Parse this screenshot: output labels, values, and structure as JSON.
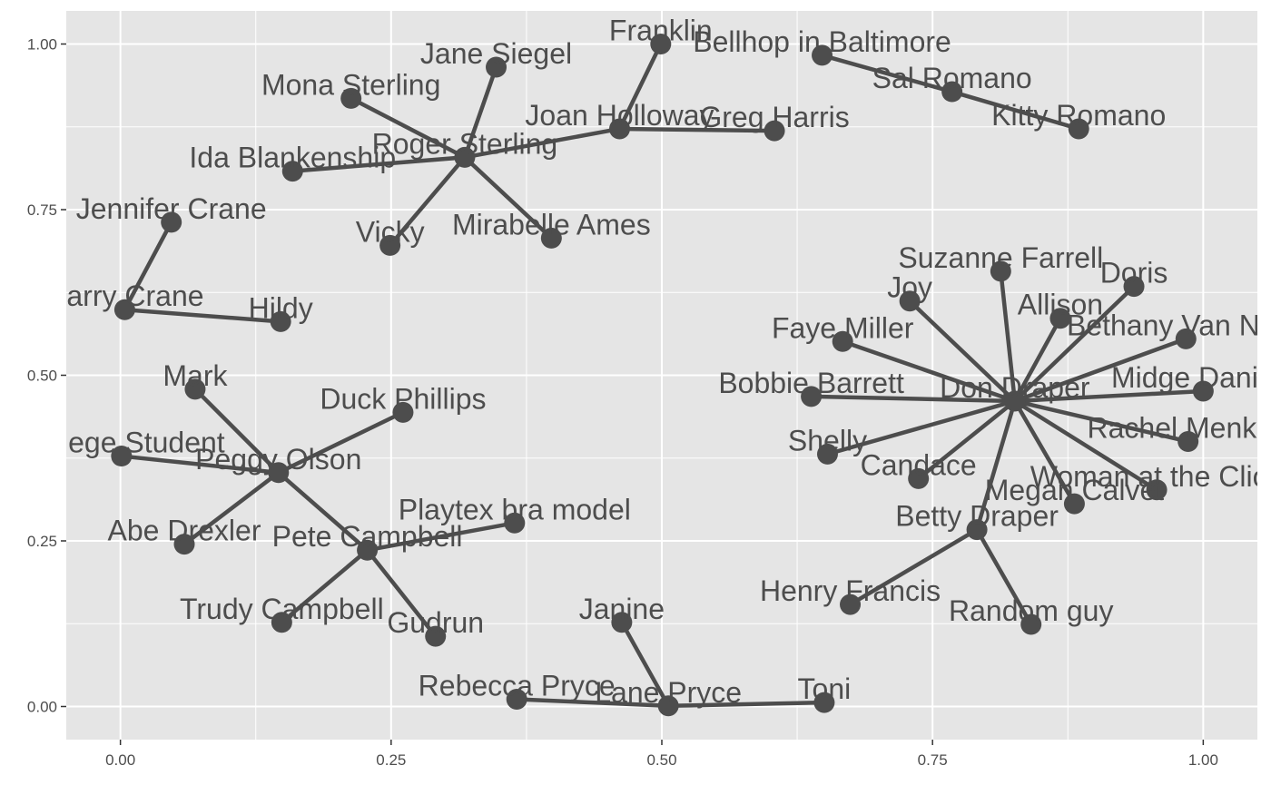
{
  "chart_data": {
    "type": "scatter",
    "subtype": "network",
    "title": "",
    "xlabel": "",
    "ylabel": "",
    "xlim": [
      -0.05,
      1.05
    ],
    "ylim": [
      -0.05,
      1.05
    ],
    "x_ticks": [
      0.0,
      0.25,
      0.5,
      0.75,
      1.0
    ],
    "y_ticks": [
      0.0,
      0.25,
      0.5,
      0.75,
      1.0
    ],
    "x_tick_labels": [
      "0.00",
      "0.25",
      "0.50",
      "0.75",
      "1.00"
    ],
    "y_tick_labels": [
      "0.00",
      "0.25",
      "0.50",
      "0.75",
      "1.00"
    ],
    "grid": true,
    "colors": {
      "panel": "#e5e5e5",
      "grid": "#ffffff",
      "mark": "#4d4d4d"
    },
    "nodes": [
      {
        "name": "Franklin",
        "x": 0.499,
        "y": 1.0
      },
      {
        "name": "Bellhop in Baltimore",
        "x": 0.648,
        "y": 0.983
      },
      {
        "name": "Jane Siegel",
        "x": 0.347,
        "y": 0.965
      },
      {
        "name": "Sal Romano",
        "x": 0.768,
        "y": 0.928
      },
      {
        "name": "Mona Sterling",
        "x": 0.213,
        "y": 0.918
      },
      {
        "name": "Joan Holloway",
        "x": 0.461,
        "y": 0.872
      },
      {
        "name": "Greg Harris",
        "x": 0.604,
        "y": 0.869
      },
      {
        "name": "Kitty Romano",
        "x": 0.885,
        "y": 0.872
      },
      {
        "name": "Roger Sterling",
        "x": 0.318,
        "y": 0.829
      },
      {
        "name": "Ida Blankenship",
        "x": 0.159,
        "y": 0.808
      },
      {
        "name": "Jennifer Crane",
        "x": 0.047,
        "y": 0.731
      },
      {
        "name": "Vicky",
        "x": 0.249,
        "y": 0.696
      },
      {
        "name": "Mirabelle Ames",
        "x": 0.398,
        "y": 0.707
      },
      {
        "name": "Suzanne Farrell",
        "x": 0.813,
        "y": 0.657
      },
      {
        "name": "Doris",
        "x": 0.936,
        "y": 0.634
      },
      {
        "name": "Joy",
        "x": 0.729,
        "y": 0.612
      },
      {
        "name": "Harry Crane",
        "x": 0.004,
        "y": 0.599
      },
      {
        "name": "Allison",
        "x": 0.868,
        "y": 0.586
      },
      {
        "name": "Hildy",
        "x": 0.148,
        "y": 0.581
      },
      {
        "name": "Bethany Van Nuys",
        "x": 0.984,
        "y": 0.555
      },
      {
        "name": "Faye Miller",
        "x": 0.667,
        "y": 0.551
      },
      {
        "name": "Mark",
        "x": 0.069,
        "y": 0.479
      },
      {
        "name": "Midge Daniels",
        "x": 1.0,
        "y": 0.476
      },
      {
        "name": "Bobbie Barrett",
        "x": 0.638,
        "y": 0.468
      },
      {
        "name": "Don Draper",
        "x": 0.826,
        "y": 0.461
      },
      {
        "name": "Duck Phillips",
        "x": 0.261,
        "y": 0.444
      },
      {
        "name": "Rachel Menken",
        "x": 0.986,
        "y": 0.4
      },
      {
        "name": "Shelly",
        "x": 0.653,
        "y": 0.381
      },
      {
        "name": "College Student",
        "x": 0.001,
        "y": 0.378
      },
      {
        "name": "Peggy Olson",
        "x": 0.146,
        "y": 0.353
      },
      {
        "name": "Candace",
        "x": 0.737,
        "y": 0.344
      },
      {
        "name": "Woman at the Clios",
        "x": 0.957,
        "y": 0.327
      },
      {
        "name": "Megan Calvet",
        "x": 0.881,
        "y": 0.306
      },
      {
        "name": "Playtex bra model",
        "x": 0.364,
        "y": 0.277
      },
      {
        "name": "Betty Draper",
        "x": 0.791,
        "y": 0.267
      },
      {
        "name": "Abe Drexler",
        "x": 0.059,
        "y": 0.245
      },
      {
        "name": "Pete Campbell",
        "x": 0.228,
        "y": 0.236
      },
      {
        "name": "Henry Francis",
        "x": 0.674,
        "y": 0.154
      },
      {
        "name": "Trudy Campbell",
        "x": 0.149,
        "y": 0.127
      },
      {
        "name": "Janine",
        "x": 0.463,
        "y": 0.127
      },
      {
        "name": "Random guy",
        "x": 0.841,
        "y": 0.124
      },
      {
        "name": "Gudrun",
        "x": 0.291,
        "y": 0.106
      },
      {
        "name": "Rebecca Pryce",
        "x": 0.366,
        "y": 0.011
      },
      {
        "name": "Lane Pryce",
        "x": 0.506,
        "y": 0.001
      },
      {
        "name": "Toni",
        "x": 0.65,
        "y": 0.006
      }
    ],
    "edges": [
      [
        "Franklin",
        "Joan Holloway"
      ],
      [
        "Joan Holloway",
        "Greg Harris"
      ],
      [
        "Joan Holloway",
        "Roger Sterling"
      ],
      [
        "Bellhop in Baltimore",
        "Sal Romano"
      ],
      [
        "Sal Romano",
        "Kitty Romano"
      ],
      [
        "Roger Sterling",
        "Jane Siegel"
      ],
      [
        "Roger Sterling",
        "Mona Sterling"
      ],
      [
        "Roger Sterling",
        "Ida Blankenship"
      ],
      [
        "Roger Sterling",
        "Vicky"
      ],
      [
        "Roger Sterling",
        "Mirabelle Ames"
      ],
      [
        "Jennifer Crane",
        "Harry Crane"
      ],
      [
        "Harry Crane",
        "Hildy"
      ],
      [
        "Peggy Olson",
        "Mark"
      ],
      [
        "Peggy Olson",
        "Duck Phillips"
      ],
      [
        "Peggy Olson",
        "College Student"
      ],
      [
        "Peggy Olson",
        "Abe Drexler"
      ],
      [
        "Peggy Olson",
        "Pete Campbell"
      ],
      [
        "Pete Campbell",
        "Playtex bra model"
      ],
      [
        "Pete Campbell",
        "Trudy Campbell"
      ],
      [
        "Pete Campbell",
        "Gudrun"
      ],
      [
        "Janine",
        "Lane Pryce"
      ],
      [
        "Rebecca Pryce",
        "Lane Pryce"
      ],
      [
        "Lane Pryce",
        "Toni"
      ],
      [
        "Don Draper",
        "Suzanne Farrell"
      ],
      [
        "Don Draper",
        "Doris"
      ],
      [
        "Don Draper",
        "Joy"
      ],
      [
        "Don Draper",
        "Allison"
      ],
      [
        "Don Draper",
        "Bethany Van Nuys"
      ],
      [
        "Don Draper",
        "Faye Miller"
      ],
      [
        "Don Draper",
        "Midge Daniels"
      ],
      [
        "Don Draper",
        "Bobbie Barrett"
      ],
      [
        "Don Draper",
        "Rachel Menken"
      ],
      [
        "Don Draper",
        "Shelly"
      ],
      [
        "Don Draper",
        "Candace"
      ],
      [
        "Don Draper",
        "Woman at the Clios"
      ],
      [
        "Don Draper",
        "Megan Calvet"
      ],
      [
        "Don Draper",
        "Betty Draper"
      ],
      [
        "Betty Draper",
        "Henry Francis"
      ],
      [
        "Betty Draper",
        "Random guy"
      ]
    ]
  }
}
